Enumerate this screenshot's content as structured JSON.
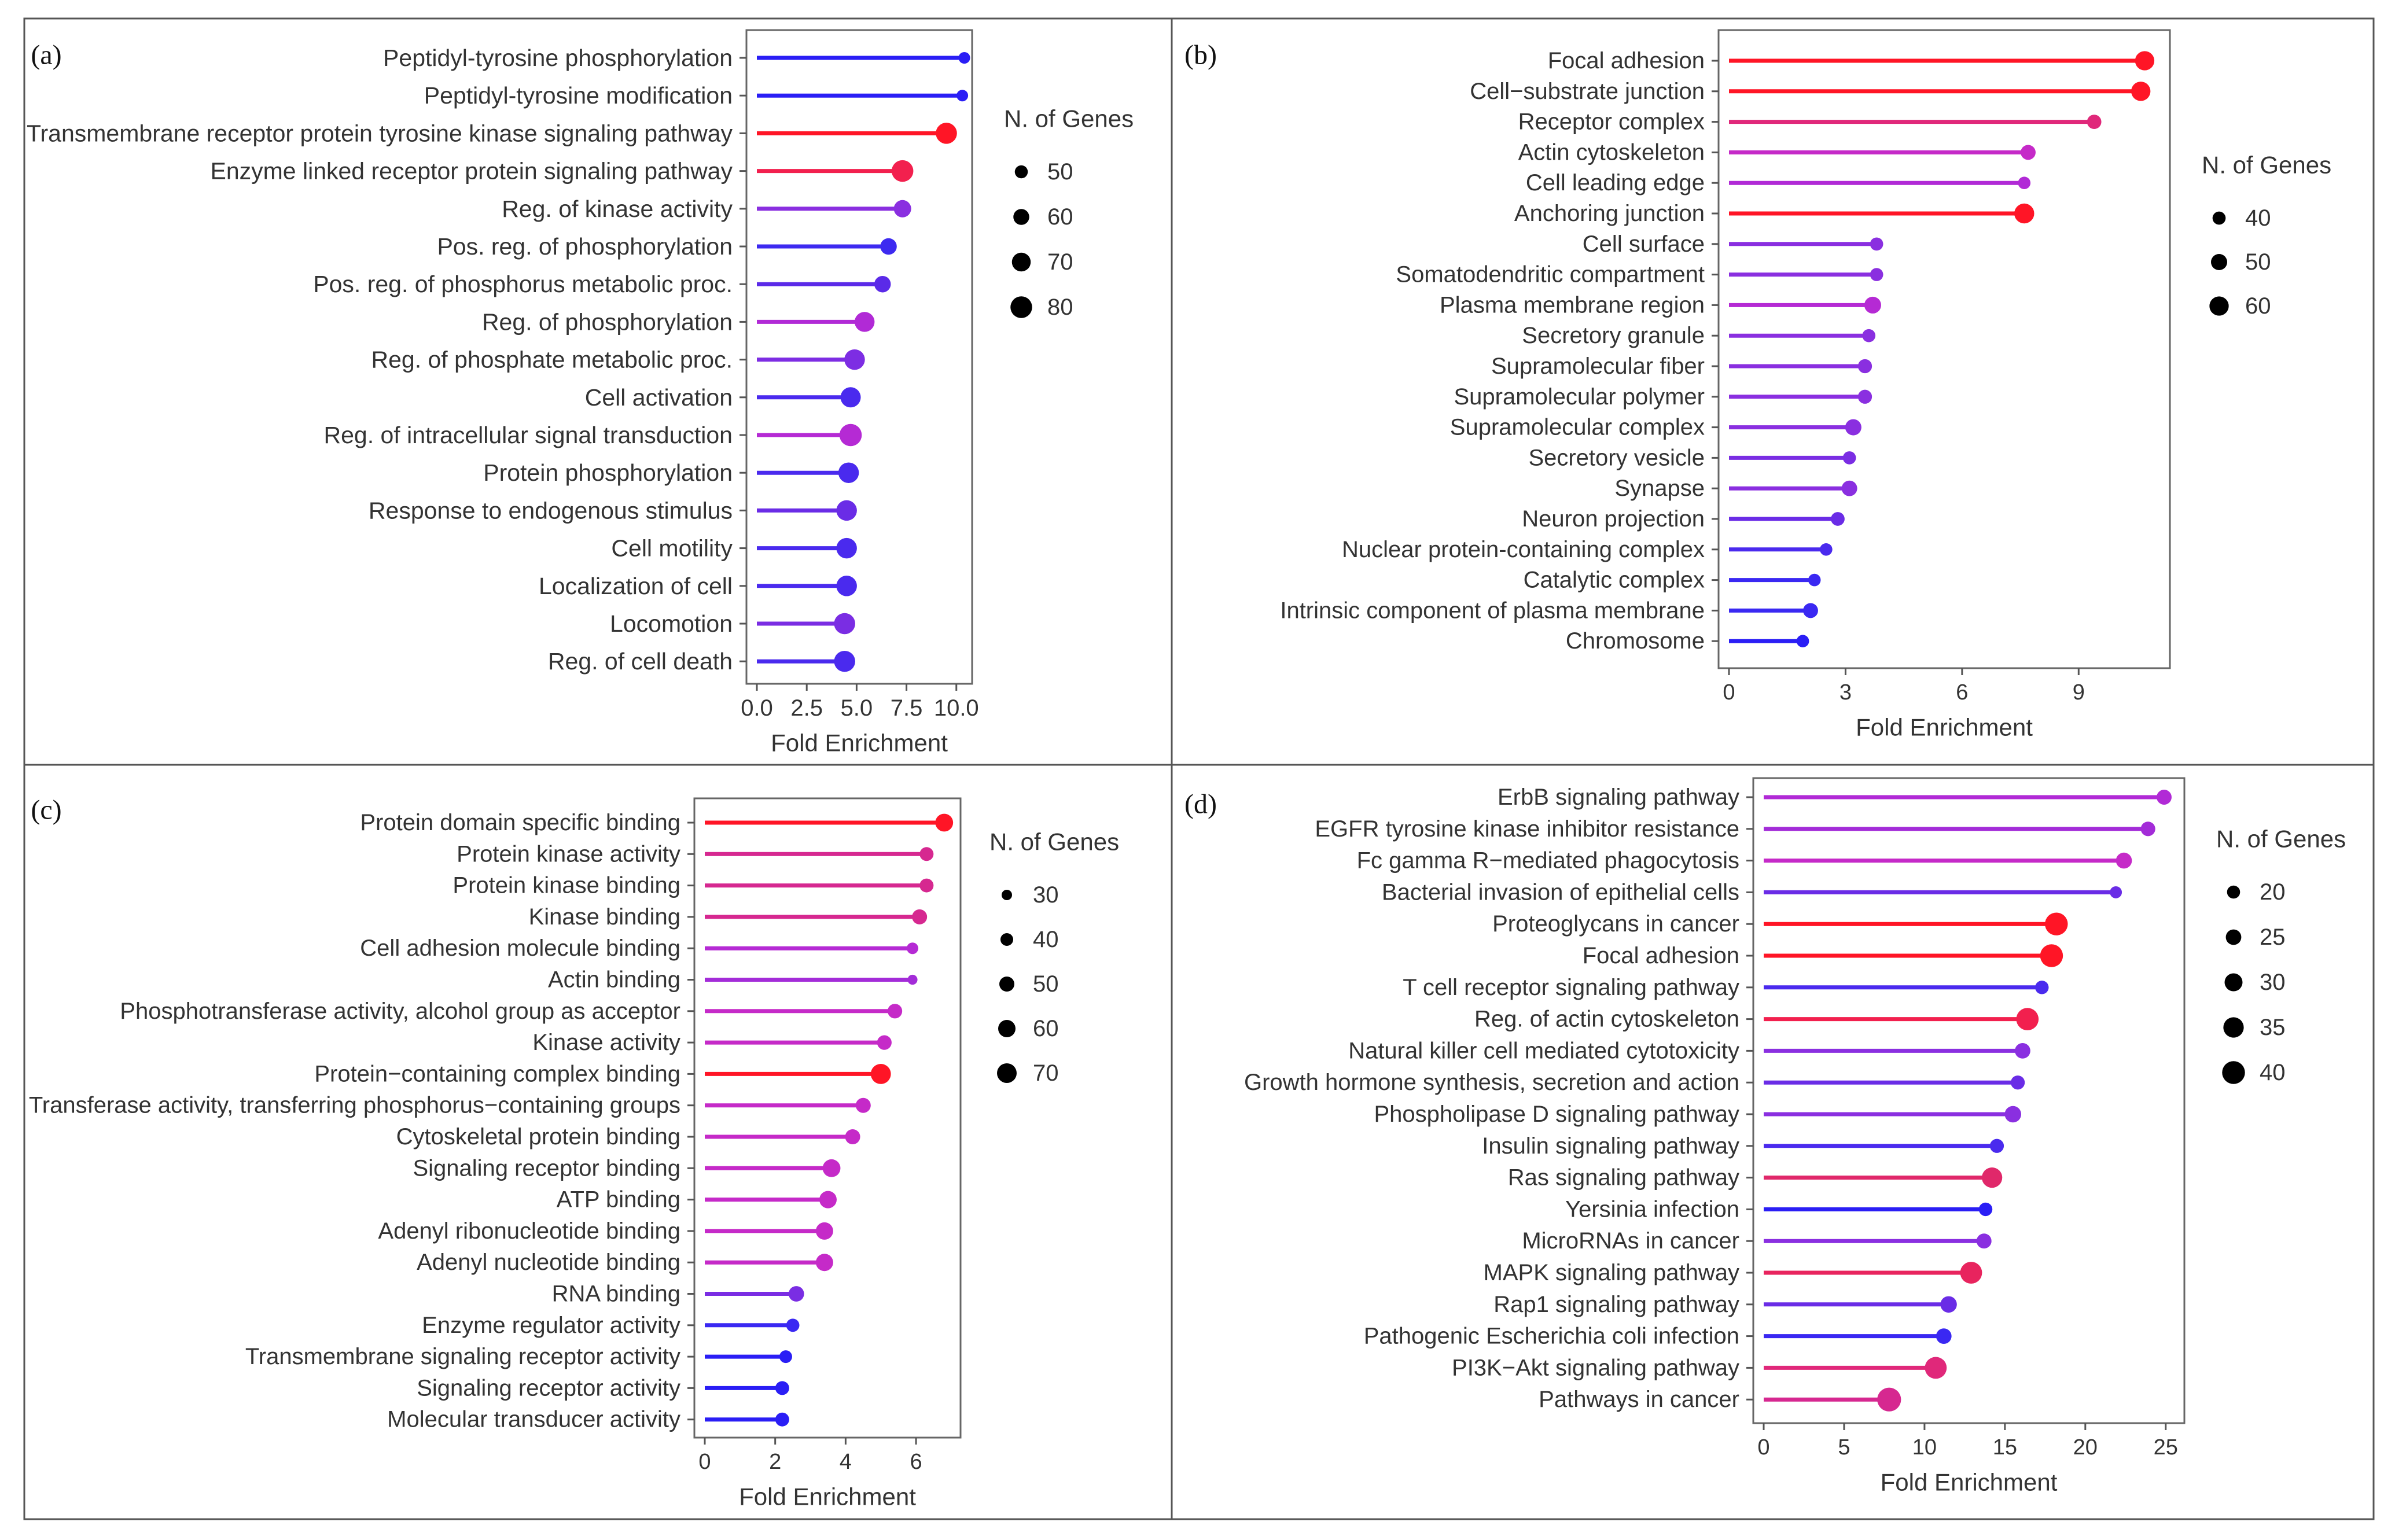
{
  "figure": {
    "axis_title_x": "Fold Enrichment",
    "legend_title": "N. of Genes",
    "colors": {
      "low": "#1b1bf0",
      "mid": "#9b2de0",
      "high": "#ff1010"
    }
  },
  "chart_data": [
    {
      "panel": "(a)",
      "type": "lollipop",
      "xlabel": "Fold Enrichment",
      "xlim": [
        0,
        10.5
      ],
      "ticks": [
        0.0,
        2.5,
        5.0,
        7.5,
        10.0
      ],
      "tick_labels": [
        "0.0",
        "2.5",
        "5.0",
        "7.5",
        "10.0"
      ],
      "size_legend": {
        "title": "N. of Genes",
        "values": [
          50,
          60,
          70,
          80
        ],
        "range": [
          45,
          85
        ]
      },
      "series": [
        {
          "label": "Peptidyl-tyrosine phosphorylation",
          "fold": 10.4,
          "genes": 45,
          "color": "#2a1ef5"
        },
        {
          "label": "Peptidyl-tyrosine modification",
          "fold": 10.3,
          "genes": 45,
          "color": "#2a1ef5"
        },
        {
          "label": "Transmembrane receptor protein tyrosine kinase signaling pathway",
          "fold": 9.5,
          "genes": 78,
          "color": "#ff1526"
        },
        {
          "label": "Enzyme linked receptor protein signaling pathway",
          "fold": 7.3,
          "genes": 80,
          "color": "#f2204e"
        },
        {
          "label": "Reg. of kinase activity",
          "fold": 7.3,
          "genes": 65,
          "color": "#8a2fe0"
        },
        {
          "label": "Pos. reg. of phosphorylation",
          "fold": 6.6,
          "genes": 62,
          "color": "#3d2af0"
        },
        {
          "label": "Pos. reg. of phosphorus metabolic proc.",
          "fold": 6.3,
          "genes": 62,
          "color": "#5b2ae8"
        },
        {
          "label": "Reg. of phosphorylation",
          "fold": 5.4,
          "genes": 74,
          "color": "#b12ad6"
        },
        {
          "label": "Reg. of phosphate metabolic proc.",
          "fold": 4.9,
          "genes": 76,
          "color": "#7d2de3"
        },
        {
          "label": "Cell activation",
          "fold": 4.7,
          "genes": 75,
          "color": "#4a2aee"
        },
        {
          "label": "Reg. of intracellular signal transduction",
          "fold": 4.7,
          "genes": 82,
          "color": "#b52ad4"
        },
        {
          "label": "Protein phosphorylation",
          "fold": 4.6,
          "genes": 76,
          "color": "#4a2aee"
        },
        {
          "label": "Response to endogenous stimulus",
          "fold": 4.5,
          "genes": 76,
          "color": "#6a2ce6"
        },
        {
          "label": "Cell motility",
          "fold": 4.5,
          "genes": 76,
          "color": "#4a2aee"
        },
        {
          "label": "Localization of cell",
          "fold": 4.5,
          "genes": 76,
          "color": "#4a2aee"
        },
        {
          "label": "Locomotion",
          "fold": 4.4,
          "genes": 78,
          "color": "#7a2de3"
        },
        {
          "label": "Reg. of cell death",
          "fold": 4.4,
          "genes": 78,
          "color": "#4a2aee"
        }
      ]
    },
    {
      "panel": "(b)",
      "type": "lollipop",
      "xlabel": "Fold Enrichment",
      "xlim": [
        0,
        11.2
      ],
      "ticks": [
        0,
        3,
        6,
        9
      ],
      "tick_labels": [
        "0",
        "3",
        "6",
        "9"
      ],
      "size_legend": {
        "title": "N. of Genes",
        "values": [
          40,
          50,
          60
        ],
        "range": [
          35,
          65
        ]
      },
      "series": [
        {
          "label": "Focal adhesion",
          "fold": 10.7,
          "genes": 60,
          "color": "#ff1526"
        },
        {
          "label": "Cell−substrate junction",
          "fold": 10.6,
          "genes": 60,
          "color": "#ff1526"
        },
        {
          "label": "Receptor complex",
          "fold": 9.4,
          "genes": 44,
          "color": "#e0287a"
        },
        {
          "label": "Actin cytoskeleton",
          "fold": 7.7,
          "genes": 46,
          "color": "#c52ac8"
        },
        {
          "label": "Cell leading edge",
          "fold": 7.6,
          "genes": 38,
          "color": "#b12ad6"
        },
        {
          "label": "Anchoring junction",
          "fold": 7.6,
          "genes": 62,
          "color": "#ff1526"
        },
        {
          "label": "Cell surface",
          "fold": 3.8,
          "genes": 40,
          "color": "#8a2fe0"
        },
        {
          "label": "Somatodendritic compartment",
          "fold": 3.8,
          "genes": 40,
          "color": "#8a2fe0"
        },
        {
          "label": "Plasma membrane region",
          "fold": 3.7,
          "genes": 52,
          "color": "#b52ad4"
        },
        {
          "label": "Secretory granule",
          "fold": 3.6,
          "genes": 40,
          "color": "#8a2fe0"
        },
        {
          "label": "Supramolecular fiber",
          "fold": 3.5,
          "genes": 43,
          "color": "#8a2fe0"
        },
        {
          "label": "Supramolecular polymer",
          "fold": 3.5,
          "genes": 43,
          "color": "#8a2fe0"
        },
        {
          "label": "Supramolecular complex",
          "fold": 3.2,
          "genes": 50,
          "color": "#8a2fe0"
        },
        {
          "label": "Secretory vesicle",
          "fold": 3.1,
          "genes": 40,
          "color": "#7a2de3"
        },
        {
          "label": "Synapse",
          "fold": 3.1,
          "genes": 48,
          "color": "#8a2fe0"
        },
        {
          "label": "Neuron projection",
          "fold": 2.8,
          "genes": 42,
          "color": "#6a2ce6"
        },
        {
          "label": "Nuclear protein-containing complex",
          "fold": 2.5,
          "genes": 38,
          "color": "#4a2aee"
        },
        {
          "label": "Catalytic complex",
          "fold": 2.2,
          "genes": 38,
          "color": "#3a28f2"
        },
        {
          "label": "Intrinsic component of plasma membrane",
          "fold": 2.1,
          "genes": 46,
          "color": "#3a28f2"
        },
        {
          "label": "Chromosome",
          "fold": 1.9,
          "genes": 38,
          "color": "#2a1ef5"
        }
      ]
    },
    {
      "panel": "(c)",
      "type": "lollipop",
      "xlabel": "Fold Enrichment",
      "xlim": [
        0,
        7.1
      ],
      "ticks": [
        0,
        2,
        4,
        6
      ],
      "tick_labels": [
        "0",
        "2",
        "4",
        "6"
      ],
      "size_legend": {
        "title": "N. of Genes",
        "values": [
          30,
          40,
          50,
          60,
          70
        ],
        "range": [
          25,
          75
        ]
      },
      "series": [
        {
          "label": "Protein domain specific binding",
          "fold": 6.8,
          "genes": 62,
          "color": "#ff1526"
        },
        {
          "label": "Protein kinase activity",
          "fold": 6.3,
          "genes": 45,
          "color": "#d62890"
        },
        {
          "label": "Protein kinase binding",
          "fold": 6.3,
          "genes": 45,
          "color": "#d62890"
        },
        {
          "label": "Kinase binding",
          "fold": 6.1,
          "genes": 50,
          "color": "#d62890"
        },
        {
          "label": "Cell adhesion molecule binding",
          "fold": 5.9,
          "genes": 35,
          "color": "#b52ad4"
        },
        {
          "label": "Actin binding",
          "fold": 5.9,
          "genes": 28,
          "color": "#a32cd8"
        },
        {
          "label": "Phosphotransferase activity, alcohol group as acceptor",
          "fold": 5.4,
          "genes": 48,
          "color": "#c52ac8"
        },
        {
          "label": "Kinase activity",
          "fold": 5.1,
          "genes": 48,
          "color": "#c52ac8"
        },
        {
          "label": "Protein−containing complex binding",
          "fold": 5.0,
          "genes": 72,
          "color": "#ff1526"
        },
        {
          "label": "Transferase activity, transferring phosphorus−containing groups",
          "fold": 4.5,
          "genes": 50,
          "color": "#c52ac8"
        },
        {
          "label": "Cytoskeletal protein binding",
          "fold": 4.2,
          "genes": 50,
          "color": "#c52ac8"
        },
        {
          "label": "Signaling receptor binding",
          "fold": 3.6,
          "genes": 62,
          "color": "#c52ac8"
        },
        {
          "label": "ATP binding",
          "fold": 3.5,
          "genes": 60,
          "color": "#c52ac8"
        },
        {
          "label": "Adenyl ribonucleotide binding",
          "fold": 3.4,
          "genes": 60,
          "color": "#c52ac8"
        },
        {
          "label": "Adenyl nucleotide binding",
          "fold": 3.4,
          "genes": 60,
          "color": "#c52ac8"
        },
        {
          "label": "RNA binding",
          "fold": 2.6,
          "genes": 52,
          "color": "#7a2de3"
        },
        {
          "label": "Enzyme regulator activity",
          "fold": 2.5,
          "genes": 42,
          "color": "#3a28f2"
        },
        {
          "label": "Transmembrane signaling receptor activity",
          "fold": 2.3,
          "genes": 40,
          "color": "#2a1ef5"
        },
        {
          "label": "Signaling receptor activity",
          "fold": 2.2,
          "genes": 45,
          "color": "#2a1ef5"
        },
        {
          "label": "Molecular transducer activity",
          "fold": 2.2,
          "genes": 45,
          "color": "#2a1ef5"
        }
      ]
    },
    {
      "panel": "(d)",
      "type": "lollipop",
      "xlabel": "Fold Enrichment",
      "xlim": [
        0,
        25.8
      ],
      "ticks": [
        0,
        5,
        10,
        15,
        20,
        25
      ],
      "tick_labels": [
        "0",
        "5",
        "10",
        "15",
        "20",
        "25"
      ],
      "size_legend": {
        "title": "N. of Genes",
        "values": [
          20,
          25,
          30,
          35,
          40
        ],
        "range": [
          17,
          43
        ]
      },
      "series": [
        {
          "label": "ErbB signaling pathway",
          "fold": 24.9,
          "genes": 24,
          "color": "#b12ad6"
        },
        {
          "label": "EGFR tyrosine kinase inhibitor resistance",
          "fold": 23.9,
          "genes": 23,
          "color": "#a32cd8"
        },
        {
          "label": "Fc gamma R−mediated phagocytosis",
          "fold": 22.4,
          "genes": 26,
          "color": "#c52ac8"
        },
        {
          "label": "Bacterial invasion of epithelial cells",
          "fold": 21.9,
          "genes": 18,
          "color": "#6a2ce6"
        },
        {
          "label": "Proteoglycans in cancer",
          "fold": 18.2,
          "genes": 40,
          "color": "#ff1526"
        },
        {
          "label": "Focal adhesion",
          "fold": 17.9,
          "genes": 40,
          "color": "#ff1526"
        },
        {
          "label": "T cell receptor signaling pathway",
          "fold": 17.3,
          "genes": 21,
          "color": "#4a2aee"
        },
        {
          "label": "Reg. of actin cytoskeleton",
          "fold": 16.4,
          "genes": 39,
          "color": "#f2204e"
        },
        {
          "label": "Natural killer cell mediated cytotoxicity",
          "fold": 16.1,
          "genes": 25,
          "color": "#8a2fe0"
        },
        {
          "label": "Growth hormone synthesis, secretion and action",
          "fold": 15.8,
          "genes": 22,
          "color": "#6a2ce6"
        },
        {
          "label": "Phospholipase D signaling pathway",
          "fold": 15.5,
          "genes": 27,
          "color": "#8a2fe0"
        },
        {
          "label": "Insulin signaling pathway",
          "fold": 14.5,
          "genes": 22,
          "color": "#4a2aee"
        },
        {
          "label": "Ras signaling pathway",
          "fold": 14.2,
          "genes": 35,
          "color": "#e0286a"
        },
        {
          "label": "Yersinia infection",
          "fold": 13.8,
          "genes": 21,
          "color": "#2a1ef5"
        },
        {
          "label": "MicroRNAs in cancer",
          "fold": 13.7,
          "genes": 24,
          "color": "#8a2fe0"
        },
        {
          "label": "MAPK signaling pathway",
          "fold": 12.9,
          "genes": 38,
          "color": "#e8245e"
        },
        {
          "label": "Rap1 signaling pathway",
          "fold": 11.5,
          "genes": 27,
          "color": "#6a2ce6"
        },
        {
          "label": "Pathogenic Escherichia coli infection",
          "fold": 11.2,
          "genes": 25,
          "color": "#3a28f2"
        },
        {
          "label": "PI3K−Akt signaling pathway",
          "fold": 10.7,
          "genes": 38,
          "color": "#e0287a"
        },
        {
          "label": "Pathways in cancer",
          "fold": 7.8,
          "genes": 42,
          "color": "#d62890"
        }
      ]
    }
  ]
}
